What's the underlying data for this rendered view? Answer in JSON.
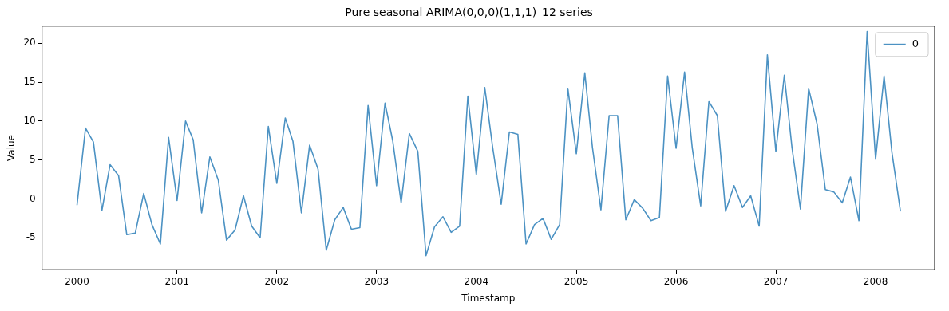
{
  "chart_data": {
    "type": "line",
    "title": "Pure seasonal ARIMA(0,0,0)(1,1,1)_12 series",
    "xlabel": "Timestamp",
    "ylabel": "Value",
    "x": [
      "2000-01",
      "2000-02",
      "2000-03",
      "2000-04",
      "2000-05",
      "2000-06",
      "2000-07",
      "2000-08",
      "2000-09",
      "2000-10",
      "2000-11",
      "2000-12",
      "2001-01",
      "2001-02",
      "2001-03",
      "2001-04",
      "2001-05",
      "2001-06",
      "2001-07",
      "2001-08",
      "2001-09",
      "2001-10",
      "2001-11",
      "2001-12",
      "2002-01",
      "2002-02",
      "2002-03",
      "2002-04",
      "2002-05",
      "2002-06",
      "2002-07",
      "2002-08",
      "2002-09",
      "2002-10",
      "2002-11",
      "2002-12",
      "2003-01",
      "2003-02",
      "2003-03",
      "2003-04",
      "2003-05",
      "2003-06",
      "2003-07",
      "2003-08",
      "2003-09",
      "2003-10",
      "2003-11",
      "2003-12",
      "2004-01",
      "2004-02",
      "2004-03",
      "2004-04",
      "2004-05",
      "2004-06",
      "2004-07",
      "2004-08",
      "2004-09",
      "2004-10",
      "2004-11",
      "2004-12",
      "2005-01",
      "2005-02",
      "2005-03",
      "2005-04",
      "2005-05",
      "2005-06",
      "2005-07",
      "2005-08",
      "2005-09",
      "2005-10",
      "2005-11",
      "2005-12",
      "2006-01",
      "2006-02",
      "2006-03",
      "2006-04",
      "2006-05",
      "2006-06",
      "2006-07",
      "2006-08",
      "2006-09",
      "2006-10",
      "2006-11",
      "2006-12",
      "2007-01",
      "2007-02",
      "2007-03",
      "2007-04",
      "2007-05",
      "2007-06",
      "2007-07",
      "2007-08",
      "2007-09",
      "2007-10",
      "2007-11",
      "2007-12",
      "2008-01",
      "2008-02",
      "2008-03",
      "2008-04"
    ],
    "series": [
      {
        "name": "0",
        "color": "#4c92c3",
        "values": [
          -0.8,
          9.1,
          7.3,
          -1.5,
          4.4,
          3.0,
          -4.6,
          -4.4,
          0.7,
          -3.3,
          -5.8,
          7.9,
          -0.2,
          10.0,
          7.6,
          -1.8,
          5.4,
          2.4,
          -5.3,
          -4.0,
          0.4,
          -3.5,
          -5.0,
          9.3,
          2.0,
          10.4,
          7.4,
          -1.8,
          6.9,
          3.8,
          -6.6,
          -2.7,
          -1.1,
          -3.9,
          -3.7,
          12.0,
          1.7,
          12.3,
          7.5,
          -0.5,
          8.4,
          6.1,
          -7.3,
          -3.6,
          -2.3,
          -4.3,
          -3.5,
          13.2,
          3.1,
          14.3,
          6.6,
          -0.7,
          8.6,
          8.3,
          -5.8,
          -3.3,
          -2.5,
          -5.2,
          -3.3,
          14.2,
          5.8,
          16.2,
          6.6,
          -1.4,
          10.7,
          10.7,
          -2.7,
          -0.1,
          -1.2,
          -2.8,
          -2.4,
          15.8,
          6.5,
          16.3,
          6.6,
          -0.9,
          12.5,
          10.7,
          -1.6,
          1.7,
          -1.1,
          0.4,
          -3.5,
          18.5,
          6.1,
          15.9,
          6.6,
          -1.3,
          14.2,
          9.6,
          1.2,
          0.9,
          -0.5,
          2.8,
          -2.8,
          21.5,
          5.1,
          15.8,
          5.9,
          -1.6
        ]
      }
    ],
    "xlim": [
      "1999-08-26",
      "2008-08-04"
    ],
    "xticks": [
      "2000",
      "2001",
      "2002",
      "2003",
      "2004",
      "2005",
      "2006",
      "2007",
      "2008"
    ],
    "ylim": [
      -9.1,
      22.2
    ],
    "yticks": [
      -5,
      0,
      5,
      10,
      15,
      20
    ],
    "legend": "top right",
    "grid": false,
    "marker": "none",
    "line_style": "solid"
  }
}
